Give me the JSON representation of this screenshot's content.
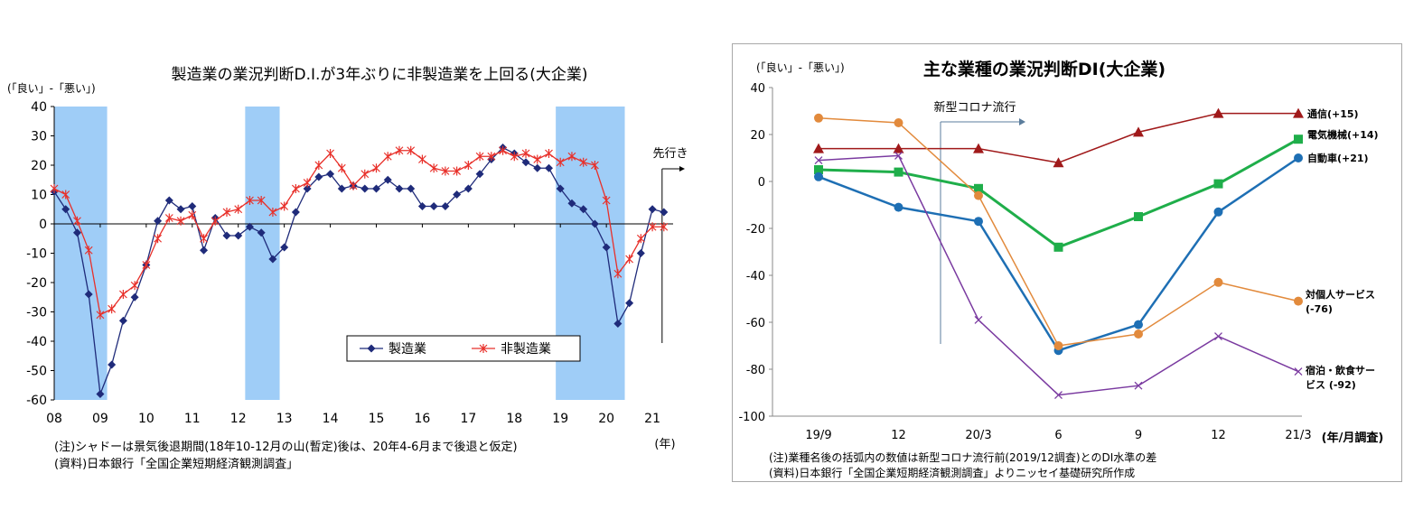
{
  "chart_data": [
    {
      "type": "line",
      "title": "製造業の業況判断D.I.が3年ぶりに非製造業を上回る(大企業)",
      "ylabel": "(「良い」-「悪い」)",
      "xlabel": "(年)",
      "ylim": [
        -60,
        40
      ],
      "yticks": [
        40,
        30,
        20,
        10,
        0,
        -10,
        -20,
        -30,
        -40,
        -50,
        -60
      ],
      "xticks": [
        "08",
        "09",
        "10",
        "11",
        "12",
        "13",
        "14",
        "15",
        "16",
        "17",
        "18",
        "19",
        "20",
        "21"
      ],
      "xtick_values": [
        2008,
        2009,
        2010,
        2011,
        2012,
        2013,
        2014,
        2015,
        2016,
        2017,
        2018,
        2019,
        2020,
        2021
      ],
      "xlim": [
        2008.0,
        2021.45
      ],
      "recession_shading": [
        [
          2008.0,
          2009.15
        ],
        [
          2012.15,
          2012.9
        ],
        [
          2018.9,
          2020.4
        ]
      ],
      "forecast_label": "先行き",
      "forecast_x": 2021.25,
      "legend_position": "bottom-right",
      "x": [
        2008.0,
        2008.25,
        2008.5,
        2008.75,
        2009.0,
        2009.25,
        2009.5,
        2009.75,
        2010.0,
        2010.25,
        2010.5,
        2010.75,
        2011.0,
        2011.25,
        2011.5,
        2011.75,
        2012.0,
        2012.25,
        2012.5,
        2012.75,
        2013.0,
        2013.25,
        2013.5,
        2013.75,
        2014.0,
        2014.25,
        2014.5,
        2014.75,
        2015.0,
        2015.25,
        2015.5,
        2015.75,
        2016.0,
        2016.25,
        2016.5,
        2016.75,
        2017.0,
        2017.25,
        2017.5,
        2017.75,
        2018.0,
        2018.25,
        2018.5,
        2018.75,
        2019.0,
        2019.25,
        2019.5,
        2019.75,
        2020.0,
        2020.25,
        2020.5,
        2020.75,
        2021.0,
        2021.25
      ],
      "series": [
        {
          "name": "製造業",
          "color": "#1f2b7a",
          "marker": "diamond",
          "values": [
            11,
            5,
            -3,
            -24,
            -58,
            -48,
            -33,
            -25,
            -14,
            1,
            8,
            5,
            6,
            -9,
            2,
            -4,
            -4,
            -1,
            -3,
            -12,
            -8,
            4,
            12,
            16,
            17,
            12,
            13,
            12,
            12,
            15,
            12,
            12,
            6,
            6,
            6,
            10,
            12,
            17,
            22,
            26,
            24,
            21,
            19,
            19,
            12,
            7,
            5,
            0,
            -8,
            -34,
            -27,
            -10,
            5,
            4
          ]
        },
        {
          "name": "非製造業",
          "color": "#e8302a",
          "marker": "asterisk",
          "values": [
            12,
            10,
            1,
            -9,
            -31,
            -29,
            -24,
            -21,
            -14,
            -5,
            2,
            1,
            3,
            -5,
            1,
            4,
            5,
            8,
            8,
            4,
            6,
            12,
            14,
            20,
            24,
            19,
            13,
            17,
            19,
            23,
            25,
            25,
            22,
            19,
            18,
            18,
            20,
            23,
            23,
            25,
            23,
            24,
            22,
            24,
            21,
            23,
            21,
            20,
            8,
            -17,
            -12,
            -5,
            -1,
            -1
          ]
        }
      ],
      "notes": [
        "(注)シャドーは景気後退期間(18年10-12月の山(暫定)後は、20年4-6月まで後退と仮定)",
        "(資料)日本銀行「全国企業短期経済観測調査」"
      ]
    },
    {
      "type": "line",
      "title": "主な業種の業況判断DI(大企業)",
      "ylabel": "(「良い」-「悪い」)",
      "xlabel": "(年/月調査)",
      "ylim": [
        -100,
        40
      ],
      "yticks": [
        40,
        20,
        0,
        -20,
        -40,
        -60,
        -80,
        -100
      ],
      "categories": [
        "19/9",
        "12",
        "20/3",
        "6",
        "9",
        "12",
        "21/3"
      ],
      "annotation": "新型コロナ流行",
      "series": [
        {
          "name": "通信",
          "label": "通信(+15)",
          "color": "#a0191a",
          "marker": "triangle",
          "values": [
            14,
            14,
            14,
            8,
            21,
            29,
            29
          ]
        },
        {
          "name": "電気機械",
          "label": "電気機械(+14)",
          "color": "#1fae4a",
          "marker": "square",
          "values": [
            5,
            4,
            -3,
            -28,
            -15,
            -1,
            18
          ]
        },
        {
          "name": "自動車",
          "label": "自動車(+21)",
          "color": "#1e6fb4",
          "marker": "circle",
          "values": [
            2,
            -11,
            -17,
            -72,
            -61,
            -13,
            10
          ]
        },
        {
          "name": "対個人サービス",
          "label": "対個人サービス",
          "label2": "(-76)",
          "color": "#e28a3c",
          "marker": "circle",
          "values": [
            27,
            25,
            -6,
            -70,
            -65,
            -43,
            -51
          ]
        },
        {
          "name": "宿泊・飲食サービス",
          "label": "宿泊・飲食サー",
          "label2": "ビス (-92)",
          "color": "#7a3aa0",
          "marker": "x",
          "values": [
            9,
            11,
            -59,
            -91,
            -87,
            -66,
            -81
          ]
        }
      ],
      "notes": [
        "(注)業種名後の括弧内の数値は新型コロナ流行前(2019/12調査)とのDI水準の差",
        "(資料)日本銀行「全国企業短期経済観測調査」よりニッセイ基礎研究所作成"
      ]
    }
  ]
}
